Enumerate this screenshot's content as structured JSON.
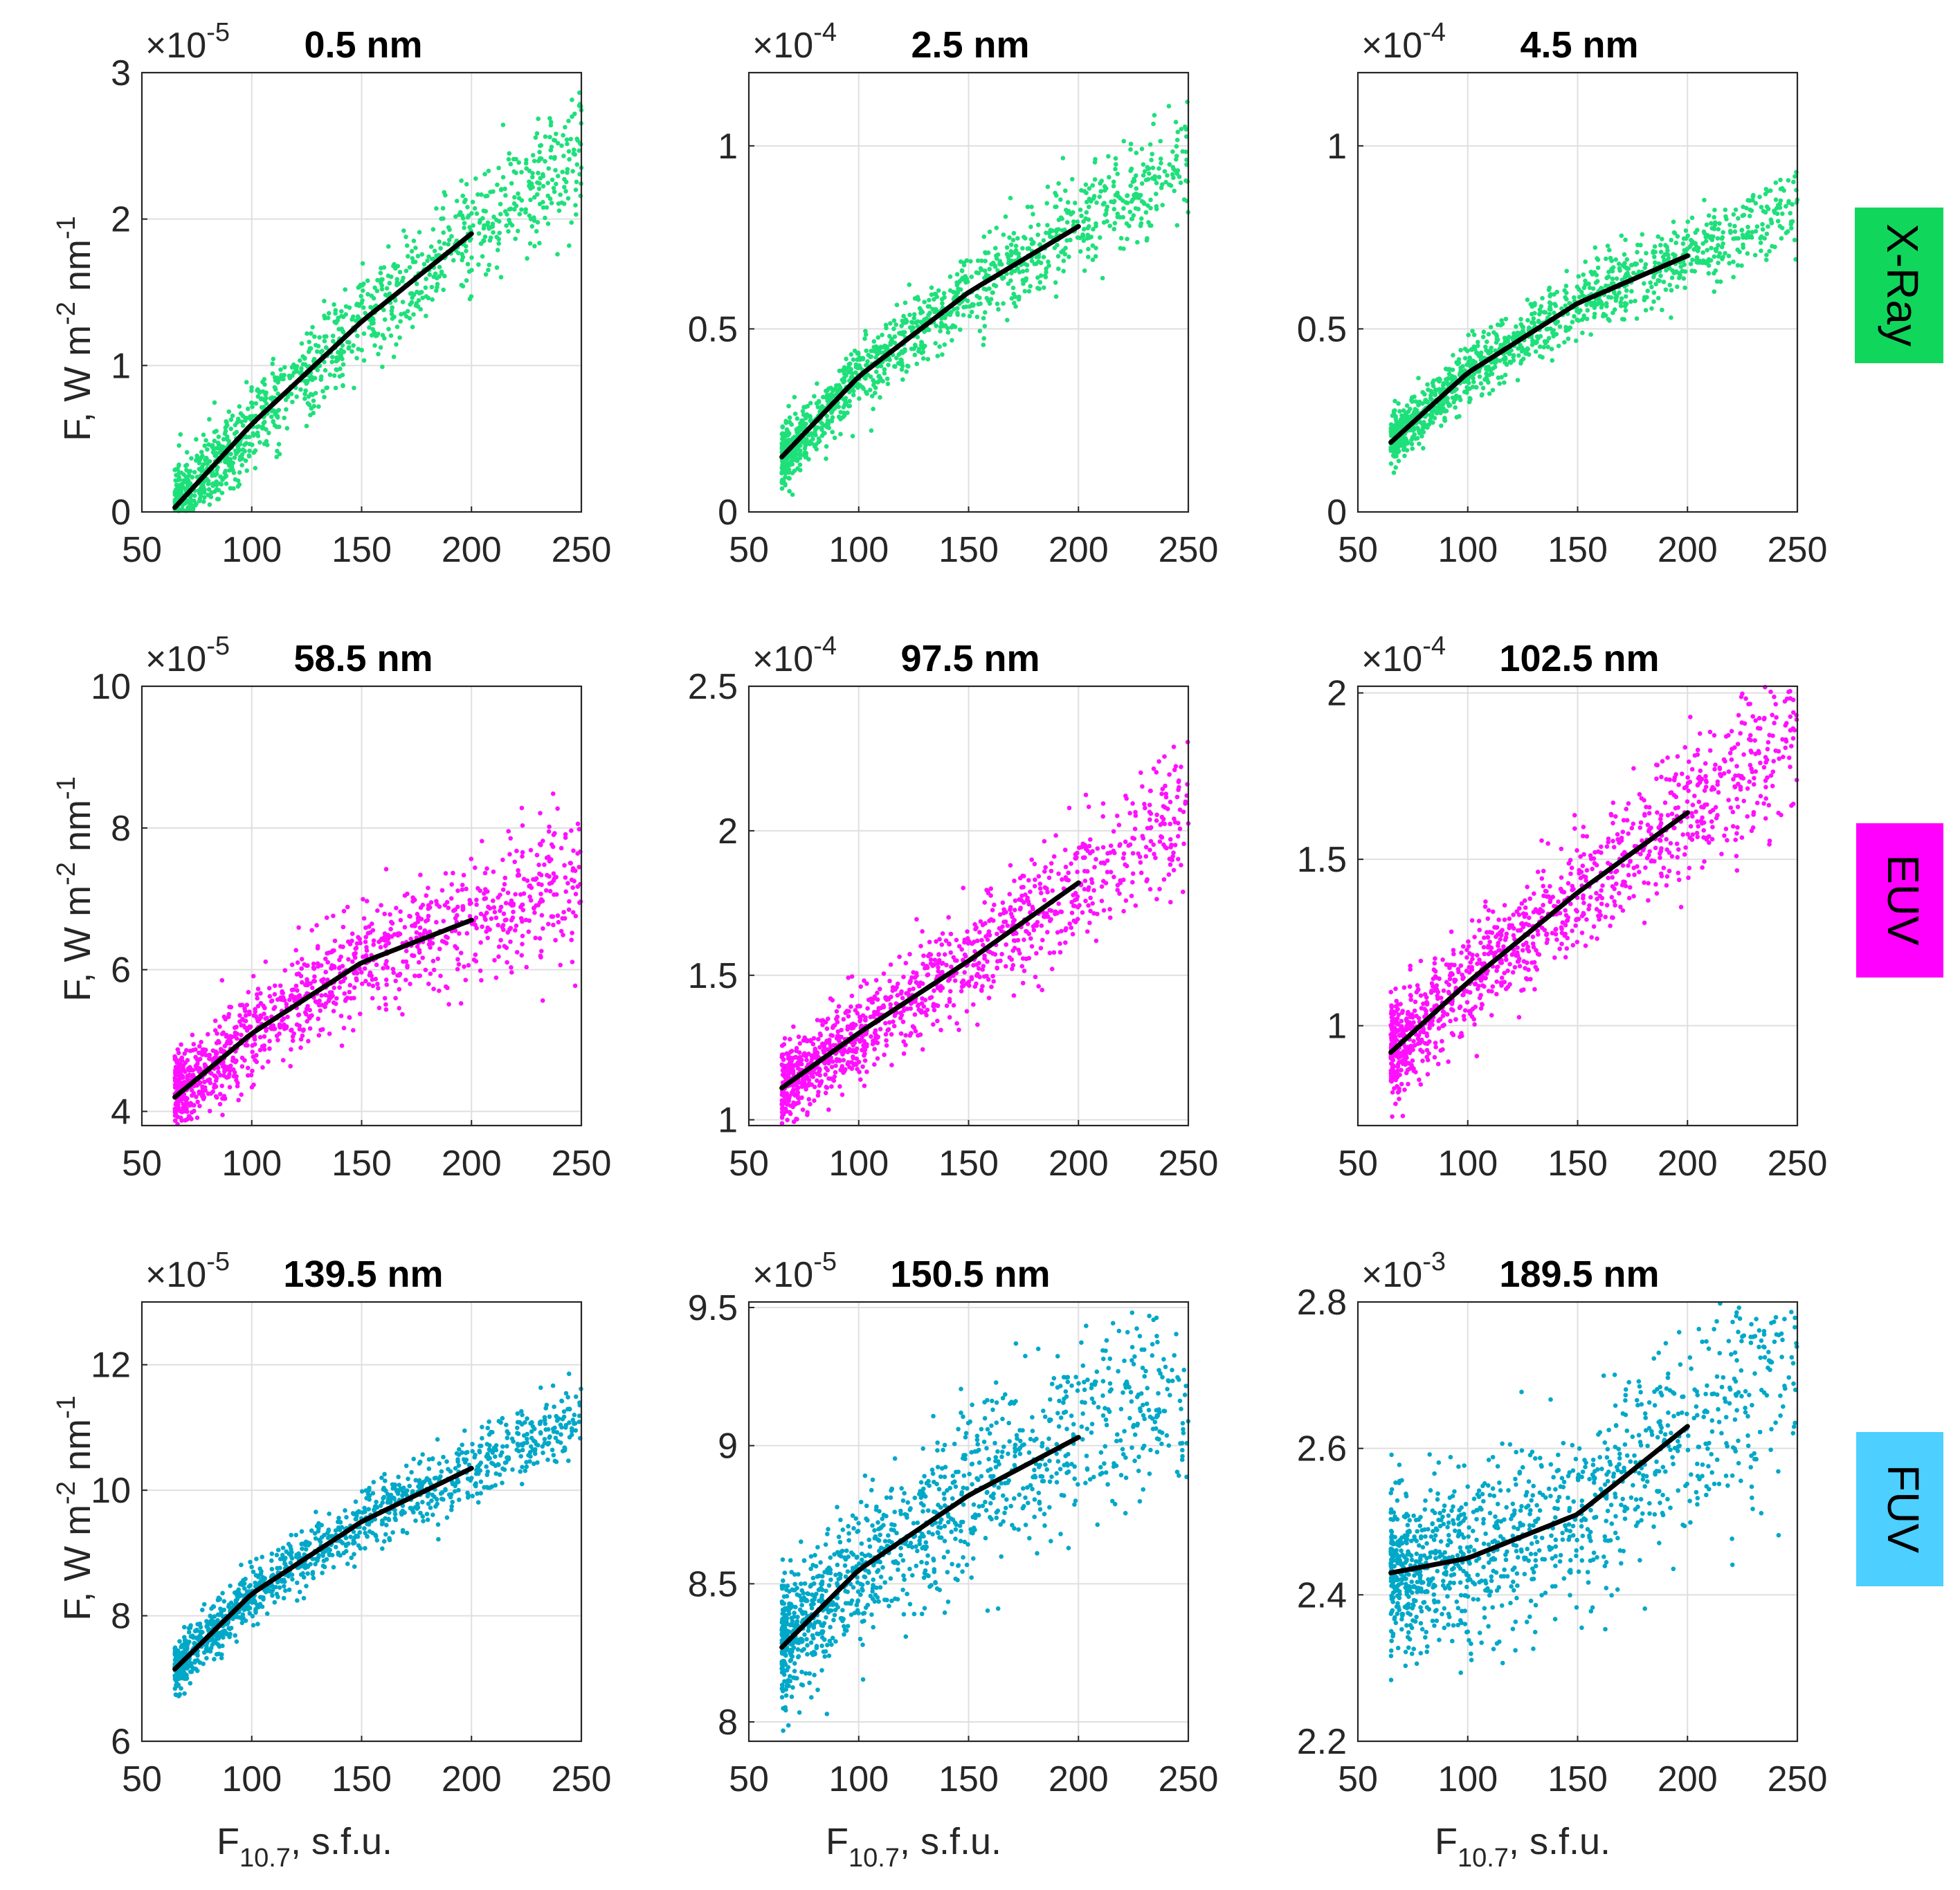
{
  "figure": {
    "y_label": {
      "main": "F,  W m",
      "sup1": "-2",
      "mid": " nm",
      "sup2": "-1"
    },
    "x_label": {
      "main": "F",
      "sub": "10.7",
      "tail": ",  s.f.u."
    },
    "times_symbol": "×10",
    "bands": [
      {
        "label": "X-Ray",
        "color": "#11d65c"
      },
      {
        "label": "EUV",
        "color": "#ff00ff"
      },
      {
        "label": "FUV",
        "color": "#4dcfff"
      }
    ]
  },
  "chart_data": [
    {
      "type": "scatter",
      "title": "0.5 nm",
      "exponent": "-5",
      "xlim": [
        50,
        250
      ],
      "ylim": [
        0,
        3
      ],
      "yticks": [
        "0",
        "1",
        "2",
        "3"
      ],
      "yticks_values": [
        0,
        1,
        2,
        3
      ],
      "xticks": [
        "50",
        "100",
        "150",
        "200",
        "250"
      ],
      "xticks_values": [
        50,
        100,
        150,
        200,
        250
      ],
      "point_color": "#1ee07a",
      "fit": {
        "x": [
          65,
          100,
          150,
          200
        ],
        "y": [
          0.03,
          0.6,
          1.3,
          1.9
        ]
      },
      "scatter": {
        "x_range": [
          65,
          250
        ],
        "spread": 0.17,
        "count": 1200,
        "seed": 11
      },
      "xlabel": "",
      "ylabel": "F,  W m-2 nm-1"
    },
    {
      "type": "scatter",
      "title": "2.5 nm",
      "exponent": "-4",
      "xlim": [
        50,
        250
      ],
      "ylim": [
        0,
        1.2
      ],
      "yticks": [
        "0",
        "0.5",
        "1"
      ],
      "yticks_values": [
        0,
        0.5,
        1
      ],
      "xticks": [
        "50",
        "100",
        "150",
        "200",
        "250"
      ],
      "xticks_values": [
        50,
        100,
        150,
        200,
        250
      ],
      "point_color": "#1ee07a",
      "fit": {
        "x": [
          65,
          100,
          150,
          200
        ],
        "y": [
          0.15,
          0.37,
          0.6,
          0.78
        ]
      },
      "scatter": {
        "x_range": [
          65,
          250
        ],
        "spread": 0.055,
        "count": 1200,
        "seed": 23
      },
      "xlabel": "",
      "ylabel": ""
    },
    {
      "type": "scatter",
      "title": "4.5 nm",
      "exponent": "-4",
      "xlim": [
        50,
        250
      ],
      "ylim": [
        0,
        1.2
      ],
      "yticks": [
        "0",
        "0.5",
        "1"
      ],
      "yticks_values": [
        0,
        0.5,
        1
      ],
      "xticks": [
        "50",
        "100",
        "150",
        "200",
        "250"
      ],
      "xticks_values": [
        50,
        100,
        150,
        200,
        250
      ],
      "point_color": "#1ee07a",
      "fit": {
        "x": [
          65,
          100,
          150,
          200
        ],
        "y": [
          0.19,
          0.38,
          0.57,
          0.7
        ]
      },
      "scatter": {
        "x_range": [
          65,
          250
        ],
        "spread": 0.045,
        "count": 1200,
        "seed": 37
      },
      "xlabel": "",
      "ylabel": ""
    },
    {
      "type": "scatter",
      "title": "58.5 nm",
      "exponent": "-5",
      "xlim": [
        50,
        250
      ],
      "ylim": [
        3.8,
        10
      ],
      "yticks": [
        "4",
        "6",
        "8",
        "10"
      ],
      "yticks_values": [
        4,
        6,
        8,
        10
      ],
      "xticks": [
        "50",
        "100",
        "150",
        "200",
        "250"
      ],
      "xticks_values": [
        50,
        100,
        150,
        200,
        250
      ],
      "point_color": "#ff10ff",
      "fit": {
        "x": [
          65,
          100,
          150,
          200
        ],
        "y": [
          4.2,
          5.1,
          6.1,
          6.7
        ]
      },
      "scatter": {
        "x_range": [
          65,
          250
        ],
        "spread": 0.38,
        "count": 1200,
        "seed": 41
      },
      "xlabel": "",
      "ylabel": "F,  W m-2 nm-1"
    },
    {
      "type": "scatter",
      "title": "97.5 nm",
      "exponent": "-4",
      "xlim": [
        50,
        250
      ],
      "ylim": [
        0.98,
        2.5
      ],
      "yticks": [
        "1",
        "1.5",
        "2",
        "2.5"
      ],
      "yticks_values": [
        1,
        1.5,
        2,
        2.5
      ],
      "xticks": [
        "50",
        "100",
        "150",
        "200",
        "250"
      ],
      "xticks_values": [
        50,
        100,
        150,
        200,
        250
      ],
      "point_color": "#ff10ff",
      "fit": {
        "x": [
          65,
          100,
          150,
          200
        ],
        "y": [
          1.11,
          1.3,
          1.55,
          1.82
        ]
      },
      "scatter": {
        "x_range": [
          65,
          250
        ],
        "spread": 0.09,
        "count": 1200,
        "seed": 53
      },
      "xlabel": "",
      "ylabel": ""
    },
    {
      "type": "scatter",
      "title": "102.5 nm",
      "exponent": "-4",
      "xlim": [
        50,
        250
      ],
      "ylim": [
        0.7,
        2.02
      ],
      "yticks": [
        "1",
        "1.5",
        "2"
      ],
      "yticks_values": [
        1,
        1.5,
        2
      ],
      "xticks": [
        "50",
        "100",
        "150",
        "200",
        "250"
      ],
      "xticks_values": [
        50,
        100,
        150,
        200,
        250
      ],
      "point_color": "#ff10ff",
      "fit": {
        "x": [
          65,
          100,
          150,
          200
        ],
        "y": [
          0.92,
          1.13,
          1.4,
          1.64
        ]
      },
      "scatter": {
        "x_range": [
          65,
          250
        ],
        "spread": 0.09,
        "count": 1200,
        "seed": 67
      },
      "xlabel": "",
      "ylabel": ""
    },
    {
      "type": "scatter",
      "title": "139.5 nm",
      "exponent": "-5",
      "xlim": [
        50,
        250
      ],
      "ylim": [
        6,
        13
      ],
      "yticks": [
        "6",
        "8",
        "10",
        "12"
      ],
      "yticks_values": [
        6,
        8,
        10,
        12
      ],
      "xticks": [
        "50",
        "100",
        "150",
        "200",
        "250"
      ],
      "xticks_values": [
        50,
        100,
        150,
        200,
        250
      ],
      "point_color": "#00a8c8",
      "fit": {
        "x": [
          65,
          100,
          150,
          200
        ],
        "y": [
          7.15,
          8.35,
          9.5,
          10.35
        ]
      },
      "scatter": {
        "x_range": [
          65,
          250
        ],
        "spread": 0.25,
        "count": 1200,
        "seed": 71
      },
      "xlabel": "F10.7,  s.f.u.",
      "ylabel": "F,  W m-2 nm-1"
    },
    {
      "type": "scatter",
      "title": "150.5 nm",
      "exponent": "-5",
      "xlim": [
        50,
        250
      ],
      "ylim": [
        7.93,
        9.52
      ],
      "yticks": [
        "8",
        "8.5",
        "9",
        "9.5"
      ],
      "yticks_values": [
        8,
        8.5,
        9,
        9.5
      ],
      "xticks": [
        "50",
        "100",
        "150",
        "200",
        "250"
      ],
      "xticks_values": [
        50,
        100,
        150,
        200,
        250
      ],
      "point_color": "#00a8c8",
      "fit": {
        "x": [
          65,
          100,
          150,
          200
        ],
        "y": [
          8.27,
          8.55,
          8.82,
          9.03
        ]
      },
      "scatter": {
        "x_range": [
          65,
          250
        ],
        "spread": 0.15,
        "count": 1200,
        "seed": 83
      },
      "xlabel": "F10.7,  s.f.u.",
      "ylabel": ""
    },
    {
      "type": "scatter",
      "title": "189.5 nm",
      "exponent": "-3",
      "xlim": [
        50,
        250
      ],
      "ylim": [
        2.2,
        2.8
      ],
      "yticks": [
        "2.2",
        "2.4",
        "2.6",
        "2.8"
      ],
      "yticks_values": [
        2.2,
        2.4,
        2.6,
        2.8
      ],
      "xticks": [
        "50",
        "100",
        "150",
        "200",
        "250"
      ],
      "xticks_values": [
        50,
        100,
        150,
        200,
        250
      ],
      "point_color": "#00a8c8",
      "fit": {
        "x": [
          65,
          100,
          150,
          200
        ],
        "y": [
          2.43,
          2.45,
          2.51,
          2.63
        ]
      },
      "scatter": {
        "x_range": [
          65,
          250
        ],
        "spread": 0.07,
        "count": 1200,
        "seed": 97
      },
      "xlabel": "F10.7,  s.f.u.",
      "ylabel": ""
    }
  ]
}
